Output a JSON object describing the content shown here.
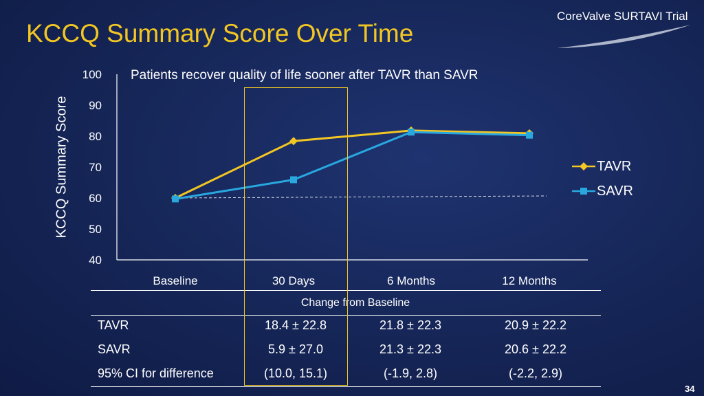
{
  "slide": {
    "title": "KCCQ Summary Score Over Time",
    "brand": "CoreValve SURTAVI Trial",
    "page_number": "34"
  },
  "chart_data": {
    "type": "line",
    "title": "Patients recover quality of life sooner after TAVR than SAVR",
    "xlabel": "",
    "ylabel": "KCCQ Summary Score",
    "categories": [
      "Baseline",
      "30 Days",
      "6 Months",
      "12 Months"
    ],
    "ylim": [
      40,
      100
    ],
    "yticks": [
      40,
      50,
      60,
      70,
      80,
      90,
      100
    ],
    "grid": false,
    "legend": "right",
    "baseline_reference": 60,
    "series": [
      {
        "name": "TAVR",
        "values": [
          60,
          78.4,
          81.8,
          80.9
        ],
        "color": "#f2c623",
        "marker": "diamond"
      },
      {
        "name": "SAVR",
        "values": [
          59.7,
          65.9,
          81.3,
          80.3
        ],
        "color": "#29a8e0",
        "marker": "square"
      }
    ]
  },
  "table": {
    "caption": "Change  from Baseline",
    "rows": [
      {
        "label": "TAVR",
        "values": [
          "18.4 ± 22.8",
          "21.8 ± 22.3",
          "20.9 ± 22.2"
        ]
      },
      {
        "label": "SAVR",
        "values": [
          "5.9 ± 27.0",
          "21.3 ± 22.3",
          "20.6 ± 22.2"
        ]
      },
      {
        "label": "95% CI for difference",
        "values": [
          "(10.0, 15.1)",
          "(-1.9, 2.8)",
          "(-2.2, 2.9)"
        ]
      }
    ]
  }
}
